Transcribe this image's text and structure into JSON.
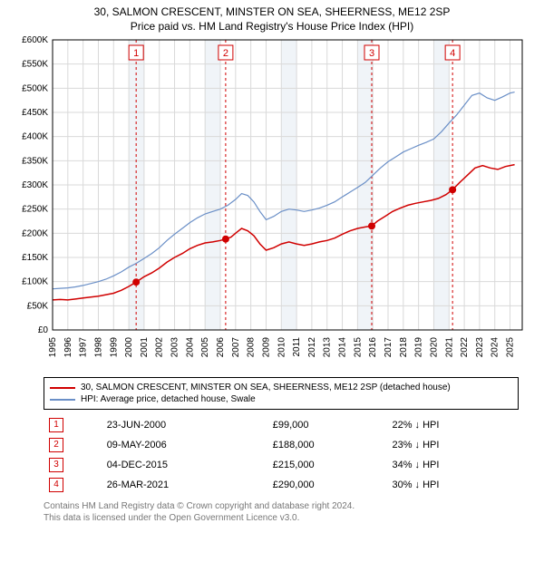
{
  "titles": {
    "line1": "30, SALMON CRESCENT, MINSTER ON SEA, SHEERNESS, ME12 2SP",
    "line2": "Price paid vs. HM Land Registry's House Price Index (HPI)"
  },
  "chart": {
    "type": "line",
    "background_color": "#ffffff",
    "plot_border_color": "#000000",
    "grid_color": "#d9d9d9",
    "band_color": "#f0f4f8",
    "x": {
      "min": 1995,
      "max": 2025.8,
      "ticks": [
        1995,
        1996,
        1997,
        1998,
        1999,
        2000,
        2001,
        2002,
        2003,
        2004,
        2005,
        2006,
        2007,
        2008,
        2009,
        2010,
        2011,
        2012,
        2013,
        2014,
        2015,
        2016,
        2017,
        2018,
        2019,
        2020,
        2021,
        2022,
        2023,
        2024,
        2025
      ],
      "tick_labels": [
        "1995",
        "1996",
        "1997",
        "1998",
        "1999",
        "2000",
        "2001",
        "2002",
        "2003",
        "2004",
        "2005",
        "2006",
        "2007",
        "2008",
        "2009",
        "2010",
        "2011",
        "2012",
        "2013",
        "2014",
        "2015",
        "2016",
        "2017",
        "2018",
        "2019",
        "2020",
        "2021",
        "2022",
        "2023",
        "2024",
        "2025"
      ],
      "label_fontsize": 10,
      "label_color": "#000000",
      "rotate": true
    },
    "y": {
      "min": 0,
      "max": 600000,
      "ticks": [
        0,
        50000,
        100000,
        150000,
        200000,
        250000,
        300000,
        350000,
        400000,
        450000,
        500000,
        550000,
        600000
      ],
      "tick_labels": [
        "£0",
        "£50K",
        "£100K",
        "£150K",
        "£200K",
        "£250K",
        "£300K",
        "£350K",
        "£400K",
        "£450K",
        "£500K",
        "£550K",
        "£600K"
      ],
      "label_fontsize": 10,
      "label_color": "#000000"
    },
    "bands": [
      {
        "from": 2000,
        "to": 2001
      },
      {
        "from": 2005,
        "to": 2006
      },
      {
        "from": 2010,
        "to": 2011
      },
      {
        "from": 2015,
        "to": 2016
      },
      {
        "from": 2020,
        "to": 2021
      }
    ],
    "event_lines": [
      {
        "x": 2000.48,
        "label": "1"
      },
      {
        "x": 2006.35,
        "label": "2"
      },
      {
        "x": 2015.93,
        "label": "3"
      },
      {
        "x": 2021.23,
        "label": "4"
      }
    ],
    "event_line_color": "#d00000",
    "event_marker_fill": "#d00000",
    "series": [
      {
        "name": "property",
        "color": "#d00000",
        "width": 1.5,
        "points": [
          [
            1995.0,
            62000
          ],
          [
            1995.5,
            63000
          ],
          [
            1996.0,
            62000
          ],
          [
            1996.5,
            64000
          ],
          [
            1997.0,
            66000
          ],
          [
            1997.5,
            68000
          ],
          [
            1998.0,
            70000
          ],
          [
            1998.5,
            73000
          ],
          [
            1999.0,
            76000
          ],
          [
            1999.5,
            82000
          ],
          [
            2000.0,
            90000
          ],
          [
            2000.48,
            99000
          ],
          [
            2001.0,
            110000
          ],
          [
            2001.5,
            118000
          ],
          [
            2002.0,
            128000
          ],
          [
            2002.5,
            140000
          ],
          [
            2003.0,
            150000
          ],
          [
            2003.5,
            158000
          ],
          [
            2004.0,
            168000
          ],
          [
            2004.5,
            175000
          ],
          [
            2005.0,
            180000
          ],
          [
            2005.5,
            182000
          ],
          [
            2006.0,
            185000
          ],
          [
            2006.35,
            188000
          ],
          [
            2006.7,
            192000
          ],
          [
            2007.0,
            200000
          ],
          [
            2007.4,
            210000
          ],
          [
            2007.8,
            205000
          ],
          [
            2008.2,
            195000
          ],
          [
            2008.6,
            178000
          ],
          [
            2009.0,
            165000
          ],
          [
            2009.5,
            170000
          ],
          [
            2010.0,
            178000
          ],
          [
            2010.5,
            182000
          ],
          [
            2011.0,
            178000
          ],
          [
            2011.5,
            175000
          ],
          [
            2012.0,
            178000
          ],
          [
            2012.5,
            182000
          ],
          [
            2013.0,
            185000
          ],
          [
            2013.5,
            190000
          ],
          [
            2014.0,
            198000
          ],
          [
            2014.5,
            205000
          ],
          [
            2015.0,
            210000
          ],
          [
            2015.5,
            213000
          ],
          [
            2015.93,
            215000
          ],
          [
            2016.3,
            225000
          ],
          [
            2016.8,
            235000
          ],
          [
            2017.3,
            245000
          ],
          [
            2017.8,
            252000
          ],
          [
            2018.3,
            258000
          ],
          [
            2018.8,
            262000
          ],
          [
            2019.3,
            265000
          ],
          [
            2019.8,
            268000
          ],
          [
            2020.3,
            272000
          ],
          [
            2020.8,
            280000
          ],
          [
            2021.23,
            290000
          ],
          [
            2021.7,
            305000
          ],
          [
            2022.2,
            320000
          ],
          [
            2022.7,
            335000
          ],
          [
            2023.2,
            340000
          ],
          [
            2023.7,
            335000
          ],
          [
            2024.2,
            332000
          ],
          [
            2024.7,
            338000
          ],
          [
            2025.3,
            342000
          ]
        ]
      },
      {
        "name": "hpi",
        "color": "#6a8fc7",
        "width": 1.2,
        "points": [
          [
            1995.0,
            85000
          ],
          [
            1995.5,
            86000
          ],
          [
            1996.0,
            87000
          ],
          [
            1996.5,
            89000
          ],
          [
            1997.0,
            92000
          ],
          [
            1997.5,
            96000
          ],
          [
            1998.0,
            100000
          ],
          [
            1998.5,
            105000
          ],
          [
            1999.0,
            112000
          ],
          [
            1999.5,
            120000
          ],
          [
            2000.0,
            130000
          ],
          [
            2000.5,
            138000
          ],
          [
            2001.0,
            148000
          ],
          [
            2001.5,
            158000
          ],
          [
            2002.0,
            170000
          ],
          [
            2002.5,
            185000
          ],
          [
            2003.0,
            198000
          ],
          [
            2003.5,
            210000
          ],
          [
            2004.0,
            222000
          ],
          [
            2004.5,
            232000
          ],
          [
            2005.0,
            240000
          ],
          [
            2005.5,
            245000
          ],
          [
            2006.0,
            250000
          ],
          [
            2006.5,
            258000
          ],
          [
            2007.0,
            270000
          ],
          [
            2007.4,
            282000
          ],
          [
            2007.8,
            278000
          ],
          [
            2008.2,
            265000
          ],
          [
            2008.6,
            245000
          ],
          [
            2009.0,
            228000
          ],
          [
            2009.5,
            235000
          ],
          [
            2010.0,
            245000
          ],
          [
            2010.5,
            250000
          ],
          [
            2011.0,
            248000
          ],
          [
            2011.5,
            245000
          ],
          [
            2012.0,
            248000
          ],
          [
            2012.5,
            252000
          ],
          [
            2013.0,
            258000
          ],
          [
            2013.5,
            265000
          ],
          [
            2014.0,
            275000
          ],
          [
            2014.5,
            285000
          ],
          [
            2015.0,
            295000
          ],
          [
            2015.5,
            305000
          ],
          [
            2016.0,
            320000
          ],
          [
            2016.5,
            335000
          ],
          [
            2017.0,
            348000
          ],
          [
            2017.5,
            358000
          ],
          [
            2018.0,
            368000
          ],
          [
            2018.5,
            375000
          ],
          [
            2019.0,
            382000
          ],
          [
            2019.5,
            388000
          ],
          [
            2020.0,
            395000
          ],
          [
            2020.5,
            410000
          ],
          [
            2021.0,
            428000
          ],
          [
            2021.5,
            445000
          ],
          [
            2022.0,
            465000
          ],
          [
            2022.5,
            485000
          ],
          [
            2023.0,
            490000
          ],
          [
            2023.5,
            480000
          ],
          [
            2024.0,
            475000
          ],
          [
            2024.5,
            482000
          ],
          [
            2025.0,
            490000
          ],
          [
            2025.3,
            492000
          ]
        ]
      }
    ]
  },
  "legend": {
    "items": [
      {
        "color": "#d00000",
        "label": "30, SALMON CRESCENT, MINSTER ON SEA, SHEERNESS, ME12 2SP (detached house)"
      },
      {
        "color": "#6a8fc7",
        "label": "HPI: Average price, detached house, Swale"
      }
    ]
  },
  "events": [
    {
      "n": "1",
      "date": "23-JUN-2000",
      "price": "£99,000",
      "delta": "22% ↓ HPI"
    },
    {
      "n": "2",
      "date": "09-MAY-2006",
      "price": "£188,000",
      "delta": "23% ↓ HPI"
    },
    {
      "n": "3",
      "date": "04-DEC-2015",
      "price": "£215,000",
      "delta": "34% ↓ HPI"
    },
    {
      "n": "4",
      "date": "26-MAR-2021",
      "price": "£290,000",
      "delta": "30% ↓ HPI"
    }
  ],
  "footer": {
    "line1": "Contains HM Land Registry data © Crown copyright and database right 2024.",
    "line2": "This data is licensed under the Open Government Licence v3.0."
  }
}
